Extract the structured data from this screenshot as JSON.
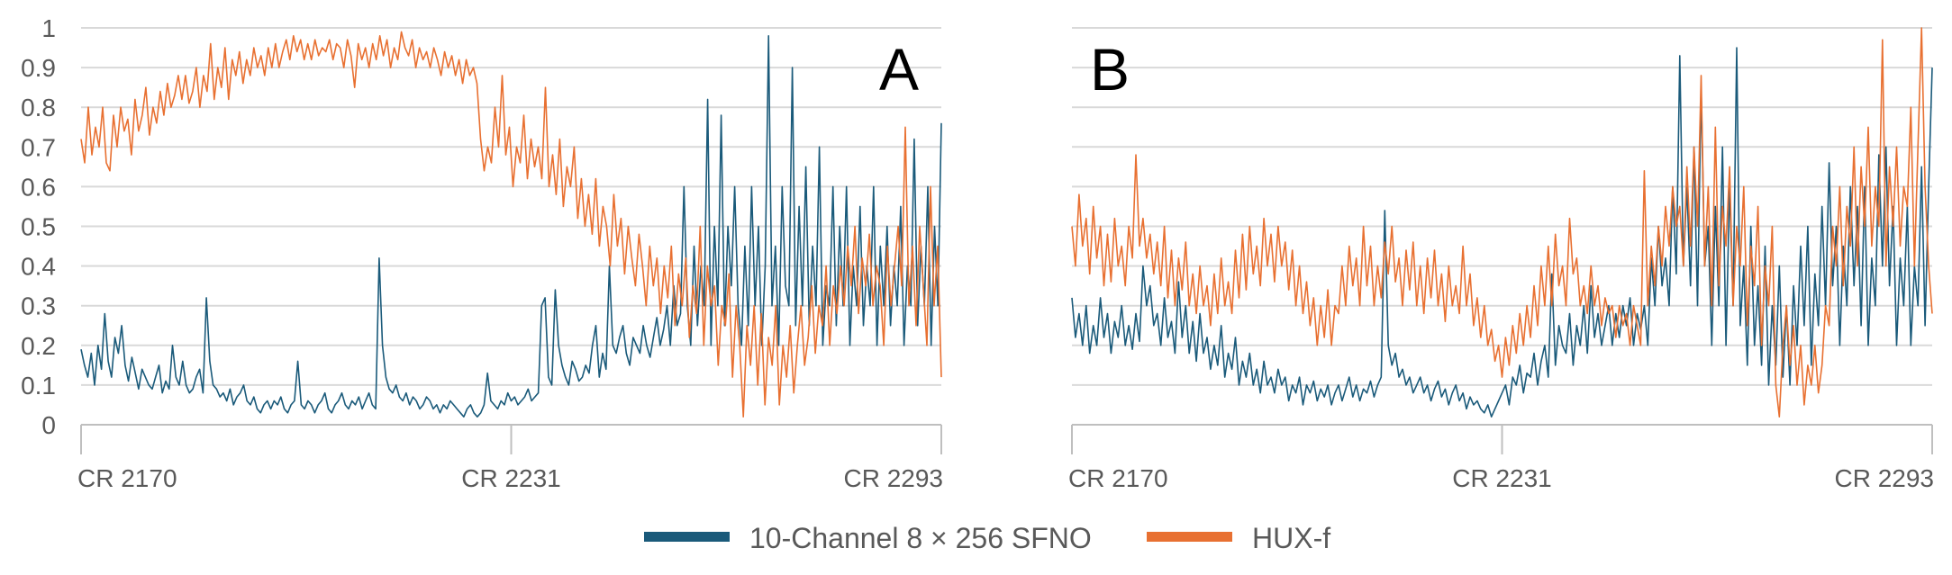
{
  "chart_data": [
    {
      "type": "line",
      "panel_label": "A",
      "x_tick_labels": [
        "CR 2170",
        "CR 2231",
        "CR 2293"
      ],
      "ylim": [
        0,
        1
      ],
      "y_ticks": [
        0,
        0.1,
        0.2,
        0.3,
        0.4,
        0.5,
        0.6,
        0.7,
        0.8,
        0.9,
        1
      ],
      "y_tick_labels": [
        "0",
        "0.1",
        "0.2",
        "0.3",
        "0.4",
        "0.5",
        "0.6",
        "0.7",
        "0.8",
        "0.9",
        "1"
      ],
      "grid": true,
      "series": [
        {
          "name": "10-Channel 8 × 256 SFNO",
          "color": "#1a5a7a",
          "values": [
            0.19,
            0.15,
            0.12,
            0.18,
            0.1,
            0.2,
            0.14,
            0.28,
            0.16,
            0.12,
            0.22,
            0.18,
            0.25,
            0.15,
            0.11,
            0.17,
            0.13,
            0.09,
            0.14,
            0.12,
            0.1,
            0.09,
            0.12,
            0.15,
            0.08,
            0.11,
            0.09,
            0.2,
            0.12,
            0.1,
            0.16,
            0.1,
            0.08,
            0.09,
            0.12,
            0.14,
            0.08,
            0.32,
            0.16,
            0.1,
            0.09,
            0.07,
            0.08,
            0.06,
            0.09,
            0.05,
            0.07,
            0.08,
            0.1,
            0.06,
            0.05,
            0.07,
            0.04,
            0.03,
            0.05,
            0.06,
            0.04,
            0.06,
            0.05,
            0.07,
            0.04,
            0.03,
            0.05,
            0.06,
            0.16,
            0.05,
            0.04,
            0.06,
            0.05,
            0.03,
            0.05,
            0.06,
            0.08,
            0.04,
            0.03,
            0.05,
            0.06,
            0.08,
            0.05,
            0.04,
            0.06,
            0.05,
            0.07,
            0.04,
            0.06,
            0.08,
            0.05,
            0.04,
            0.42,
            0.2,
            0.12,
            0.09,
            0.08,
            0.1,
            0.07,
            0.06,
            0.08,
            0.05,
            0.07,
            0.06,
            0.04,
            0.05,
            0.07,
            0.06,
            0.04,
            0.05,
            0.03,
            0.05,
            0.04,
            0.06,
            0.05,
            0.04,
            0.03,
            0.02,
            0.04,
            0.05,
            0.03,
            0.02,
            0.03,
            0.05,
            0.13,
            0.06,
            0.05,
            0.04,
            0.06,
            0.05,
            0.08,
            0.06,
            0.07,
            0.05,
            0.06,
            0.07,
            0.09,
            0.06,
            0.07,
            0.08,
            0.3,
            0.32,
            0.12,
            0.1,
            0.34,
            0.2,
            0.15,
            0.12,
            0.1,
            0.16,
            0.14,
            0.11,
            0.12,
            0.15,
            0.13,
            0.2,
            0.25,
            0.12,
            0.18,
            0.14,
            0.4,
            0.2,
            0.18,
            0.22,
            0.25,
            0.18,
            0.15,
            0.22,
            0.2,
            0.18,
            0.25,
            0.2,
            0.17,
            0.22,
            0.27,
            0.2,
            0.24,
            0.3,
            0.2,
            0.35,
            0.25,
            0.28,
            0.6,
            0.3,
            0.2,
            0.45,
            0.25,
            0.4,
            0.3,
            0.82,
            0.2,
            0.5,
            0.3,
            0.78,
            0.25,
            0.5,
            0.35,
            0.6,
            0.3,
            0.2,
            0.45,
            0.25,
            0.6,
            0.3,
            0.5,
            0.2,
            0.4,
            0.98,
            0.3,
            0.45,
            0.2,
            0.6,
            0.35,
            0.3,
            0.9,
            0.25,
            0.55,
            0.3,
            0.65,
            0.25,
            0.45,
            0.3,
            0.7,
            0.2,
            0.35,
            0.3,
            0.6,
            0.25,
            0.5,
            0.3,
            0.6,
            0.2,
            0.4,
            0.3,
            0.55,
            0.25,
            0.4,
            0.3,
            0.6,
            0.2,
            0.45,
            0.3,
            0.5,
            0.25,
            0.4,
            0.3,
            0.55,
            0.2,
            0.4,
            0.3,
            0.72,
            0.25,
            0.45,
            0.3,
            0.6,
            0.2,
            0.5,
            0.3,
            0.76
          ]
        },
        {
          "name": "HUX-f",
          "color": "#e87031",
          "values": [
            0.72,
            0.66,
            0.8,
            0.68,
            0.75,
            0.7,
            0.8,
            0.66,
            0.64,
            0.78,
            0.7,
            0.8,
            0.74,
            0.77,
            0.68,
            0.82,
            0.74,
            0.78,
            0.85,
            0.73,
            0.8,
            0.76,
            0.84,
            0.78,
            0.86,
            0.8,
            0.83,
            0.88,
            0.82,
            0.88,
            0.81,
            0.84,
            0.9,
            0.8,
            0.88,
            0.84,
            0.96,
            0.82,
            0.9,
            0.85,
            0.95,
            0.82,
            0.92,
            0.88,
            0.94,
            0.86,
            0.92,
            0.88,
            0.95,
            0.9,
            0.93,
            0.88,
            0.95,
            0.9,
            0.96,
            0.9,
            0.94,
            0.97,
            0.92,
            0.98,
            0.94,
            0.97,
            0.92,
            0.96,
            0.92,
            0.97,
            0.93,
            0.95,
            0.94,
            0.97,
            0.92,
            0.96,
            0.95,
            0.9,
            0.97,
            0.93,
            0.85,
            0.96,
            0.92,
            0.95,
            0.9,
            0.96,
            0.92,
            0.98,
            0.93,
            0.97,
            0.9,
            0.95,
            0.92,
            0.99,
            0.95,
            0.93,
            0.97,
            0.9,
            0.95,
            0.92,
            0.94,
            0.9,
            0.95,
            0.92,
            0.88,
            0.94,
            0.9,
            0.93,
            0.88,
            0.92,
            0.86,
            0.92,
            0.88,
            0.9,
            0.86,
            0.72,
            0.64,
            0.7,
            0.66,
            0.8,
            0.7,
            0.88,
            0.68,
            0.75,
            0.6,
            0.7,
            0.66,
            0.78,
            0.62,
            0.72,
            0.65,
            0.7,
            0.62,
            0.85,
            0.6,
            0.68,
            0.58,
            0.72,
            0.55,
            0.65,
            0.6,
            0.7,
            0.52,
            0.62,
            0.5,
            0.58,
            0.48,
            0.62,
            0.45,
            0.55,
            0.5,
            0.4,
            0.58,
            0.45,
            0.52,
            0.38,
            0.5,
            0.42,
            0.35,
            0.48,
            0.4,
            0.3,
            0.45,
            0.35,
            0.42,
            0.28,
            0.4,
            0.32,
            0.45,
            0.25,
            0.38,
            0.3,
            0.42,
            0.22,
            0.35,
            0.28,
            0.5,
            0.2,
            0.4,
            0.3,
            0.35,
            0.15,
            0.3,
            0.25,
            0.38,
            0.12,
            0.3,
            0.2,
            0.02,
            0.25,
            0.15,
            0.3,
            0.1,
            0.28,
            0.05,
            0.22,
            0.15,
            0.3,
            0.05,
            0.2,
            0.12,
            0.25,
            0.08,
            0.2,
            0.3,
            0.15,
            0.22,
            0.35,
            0.18,
            0.3,
            0.25,
            0.4,
            0.2,
            0.35,
            0.28,
            0.4,
            0.3,
            0.45,
            0.35,
            0.5,
            0.28,
            0.42,
            0.35,
            0.48,
            0.3,
            0.4,
            0.35,
            0.2,
            0.45,
            0.3,
            0.4,
            0.5,
            0.35,
            0.75,
            0.3,
            0.45,
            0.25,
            0.5,
            0.35,
            0.2,
            0.6,
            0.3,
            0.45,
            0.12
          ]
        }
      ]
    },
    {
      "type": "line",
      "panel_label": "B",
      "x_tick_labels": [
        "CR 2170",
        "CR 2231",
        "CR 2293"
      ],
      "ylim": [
        0,
        1
      ],
      "y_ticks": [
        0,
        0.1,
        0.2,
        0.3,
        0.4,
        0.5,
        0.6,
        0.7,
        0.8,
        0.9,
        1
      ],
      "grid": true,
      "series": [
        {
          "name": "10-Channel 8 × 256 SFNO",
          "color": "#1a5a7a",
          "values": [
            0.32,
            0.22,
            0.28,
            0.2,
            0.3,
            0.18,
            0.25,
            0.2,
            0.32,
            0.22,
            0.28,
            0.18,
            0.26,
            0.22,
            0.3,
            0.2,
            0.25,
            0.19,
            0.28,
            0.21,
            0.4,
            0.3,
            0.35,
            0.25,
            0.28,
            0.2,
            0.32,
            0.22,
            0.26,
            0.18,
            0.36,
            0.22,
            0.3,
            0.18,
            0.26,
            0.16,
            0.28,
            0.18,
            0.22,
            0.14,
            0.2,
            0.15,
            0.25,
            0.12,
            0.18,
            0.14,
            0.22,
            0.1,
            0.16,
            0.12,
            0.18,
            0.1,
            0.14,
            0.08,
            0.16,
            0.1,
            0.12,
            0.08,
            0.14,
            0.1,
            0.12,
            0.06,
            0.1,
            0.08,
            0.12,
            0.05,
            0.1,
            0.08,
            0.11,
            0.06,
            0.09,
            0.07,
            0.1,
            0.05,
            0.08,
            0.1,
            0.06,
            0.09,
            0.12,
            0.07,
            0.1,
            0.06,
            0.09,
            0.08,
            0.11,
            0.07,
            0.1,
            0.12,
            0.54,
            0.2,
            0.15,
            0.18,
            0.12,
            0.14,
            0.1,
            0.12,
            0.08,
            0.1,
            0.12,
            0.08,
            0.1,
            0.06,
            0.09,
            0.11,
            0.07,
            0.09,
            0.05,
            0.08,
            0.1,
            0.06,
            0.08,
            0.04,
            0.07,
            0.05,
            0.06,
            0.04,
            0.03,
            0.05,
            0.02,
            0.04,
            0.06,
            0.08,
            0.1,
            0.05,
            0.12,
            0.1,
            0.15,
            0.08,
            0.13,
            0.12,
            0.18,
            0.1,
            0.16,
            0.2,
            0.12,
            0.38,
            0.15,
            0.25,
            0.2,
            0.18,
            0.28,
            0.15,
            0.25,
            0.2,
            0.3,
            0.18,
            0.35,
            0.22,
            0.28,
            0.2,
            0.25,
            0.3,
            0.2,
            0.28,
            0.22,
            0.3,
            0.25,
            0.32,
            0.2,
            0.28,
            0.24,
            0.3,
            0.2,
            0.42,
            0.3,
            0.5,
            0.35,
            0.42,
            0.3,
            0.6,
            0.38,
            0.93,
            0.4,
            0.6,
            0.35,
            0.7,
            0.3,
            0.85,
            0.4,
            0.5,
            0.2,
            0.55,
            0.3,
            0.7,
            0.2,
            0.6,
            0.3,
            0.95,
            0.25,
            0.4,
            0.15,
            0.5,
            0.2,
            0.35,
            0.15,
            0.45,
            0.1,
            0.3,
            0.15,
            0.4,
            0.12,
            0.3,
            0.1,
            0.35,
            0.2,
            0.45,
            0.25,
            0.5,
            0.15,
            0.38,
            0.25,
            0.55,
            0.3,
            0.66,
            0.35,
            0.5,
            0.2,
            0.45,
            0.3,
            0.6,
            0.35,
            0.55,
            0.25,
            0.6,
            0.2,
            0.42,
            0.3,
            0.68,
            0.4,
            0.7,
            0.35,
            0.55,
            0.2,
            0.42,
            0.3,
            0.55,
            0.2,
            0.4,
            0.3,
            0.65,
            0.25,
            0.6,
            0.9
          ]
        },
        {
          "name": "HUX-f",
          "color": "#e87031",
          "values": [
            0.5,
            0.4,
            0.58,
            0.45,
            0.52,
            0.38,
            0.55,
            0.42,
            0.5,
            0.35,
            0.48,
            0.36,
            0.52,
            0.4,
            0.45,
            0.35,
            0.5,
            0.42,
            0.68,
            0.45,
            0.52,
            0.42,
            0.48,
            0.38,
            0.46,
            0.35,
            0.5,
            0.32,
            0.44,
            0.3,
            0.42,
            0.34,
            0.46,
            0.3,
            0.38,
            0.28,
            0.4,
            0.3,
            0.35,
            0.25,
            0.38,
            0.28,
            0.42,
            0.3,
            0.36,
            0.28,
            0.44,
            0.32,
            0.48,
            0.34,
            0.5,
            0.38,
            0.45,
            0.35,
            0.52,
            0.4,
            0.48,
            0.36,
            0.5,
            0.4,
            0.46,
            0.34,
            0.44,
            0.3,
            0.4,
            0.28,
            0.36,
            0.25,
            0.32,
            0.2,
            0.3,
            0.22,
            0.34,
            0.2,
            0.3,
            0.28,
            0.4,
            0.3,
            0.45,
            0.35,
            0.42,
            0.3,
            0.5,
            0.35,
            0.45,
            0.3,
            0.4,
            0.32,
            0.46,
            0.38,
            0.5,
            0.36,
            0.42,
            0.3,
            0.44,
            0.34,
            0.46,
            0.3,
            0.4,
            0.28,
            0.42,
            0.32,
            0.44,
            0.3,
            0.38,
            0.26,
            0.4,
            0.3,
            0.35,
            0.28,
            0.45,
            0.3,
            0.38,
            0.25,
            0.32,
            0.22,
            0.3,
            0.2,
            0.24,
            0.16,
            0.2,
            0.12,
            0.22,
            0.15,
            0.25,
            0.18,
            0.28,
            0.2,
            0.3,
            0.22,
            0.35,
            0.25,
            0.4,
            0.3,
            0.45,
            0.3,
            0.48,
            0.35,
            0.4,
            0.3,
            0.52,
            0.38,
            0.42,
            0.3,
            0.35,
            0.28,
            0.4,
            0.3,
            0.35,
            0.25,
            0.32,
            0.28,
            0.3,
            0.22,
            0.3,
            0.25,
            0.28,
            0.2,
            0.3,
            0.25,
            0.2,
            0.64,
            0.3,
            0.45,
            0.35,
            0.5,
            0.4,
            0.55,
            0.45,
            0.6,
            0.5,
            0.55,
            0.4,
            0.65,
            0.45,
            0.7,
            0.5,
            0.88,
            0.4,
            0.6,
            0.3,
            0.75,
            0.35,
            0.55,
            0.45,
            0.65,
            0.3,
            0.5,
            0.4,
            0.6,
            0.25,
            0.45,
            0.35,
            0.55,
            0.2,
            0.4,
            0.3,
            0.5,
            0.1,
            0.02,
            0.2,
            0.3,
            0.15,
            0.25,
            0.1,
            0.2,
            0.05,
            0.15,
            0.1,
            0.2,
            0.08,
            0.15,
            0.3,
            0.25,
            0.5,
            0.4,
            0.6,
            0.35,
            0.55,
            0.45,
            0.7,
            0.4,
            0.65,
            0.5,
            0.75,
            0.45,
            0.6,
            0.5,
            0.97,
            0.4,
            0.65,
            0.5,
            0.7,
            0.45,
            0.6,
            0.55,
            0.8,
            0.4,
            0.7,
            1.0,
            0.6,
            0.4,
            0.28
          ]
        }
      ]
    }
  ],
  "legend": {
    "items": [
      {
        "label": "10-Channel 8 × 256 SFNO",
        "color": "#1a5a7a"
      },
      {
        "label": "HUX-f",
        "color": "#e87031"
      }
    ]
  }
}
